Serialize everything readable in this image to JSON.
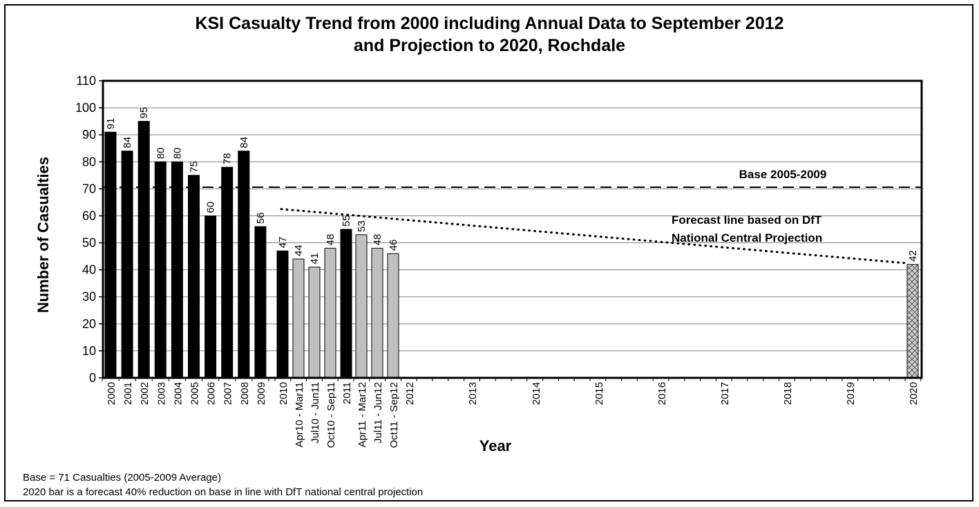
{
  "title_line1": "KSI Casualty Trend from 2000 including Annual Data to September 2012",
  "title_line2": "and Projection to 2020, Rochdale",
  "notes": {
    "line1": "Base = 71 Casualties (2005-2009 Average)",
    "line2": "2020 bar is a forecast 40% reduction on base in line with DfT national central projection"
  },
  "chart_data": {
    "type": "bar",
    "title": "KSI Casualty Trend from 2000 including Annual Data to September 2012 and Projection to 2020, Rochdale",
    "xlabel": "Year",
    "ylabel": "Number of Casualties",
    "ylim": [
      0,
      110
    ],
    "ytick_step": 10,
    "grid": true,
    "categories": [
      "2000",
      "2001",
      "2002",
      "2003",
      "2004",
      "2005",
      "2006",
      "2007",
      "2008",
      "2009",
      "2010",
      "Apr10 - Mar11",
      "Jul10 - Jun11",
      "Oct10 - Sep11",
      "2011",
      "Apr11 - Mar12",
      "Jul11 - Jun12",
      "Oct11 - Sep12",
      "2012",
      "2013",
      "2014",
      "2015",
      "2016",
      "2017",
      "2018",
      "2019",
      "2020"
    ],
    "bars": [
      {
        "category": "2000",
        "value": 91,
        "label": "91",
        "style": "annual"
      },
      {
        "category": "2001",
        "value": 84,
        "label": "84",
        "style": "annual"
      },
      {
        "category": "2002",
        "value": 95,
        "label": "95",
        "style": "annual"
      },
      {
        "category": "2003",
        "value": 80,
        "label": "80",
        "style": "annual"
      },
      {
        "category": "2004",
        "value": 80,
        "label": "80",
        "style": "annual"
      },
      {
        "category": "2005",
        "value": 75,
        "label": "75",
        "style": "annual"
      },
      {
        "category": "2006",
        "value": 60,
        "label": "60",
        "style": "annual"
      },
      {
        "category": "2007",
        "value": 78,
        "label": "78",
        "style": "annual"
      },
      {
        "category": "2008",
        "value": 84,
        "label": "84",
        "style": "annual"
      },
      {
        "category": "2009",
        "value": 56,
        "label": "56",
        "style": "annual"
      },
      {
        "category": "2010",
        "value": 47,
        "label": "47",
        "style": "annual"
      },
      {
        "category": "Apr10 - Mar11",
        "value": 44,
        "label": "44",
        "style": "rolling"
      },
      {
        "category": "Jul10 - Jun11",
        "value": 41,
        "label": "41",
        "style": "rolling"
      },
      {
        "category": "Oct10 - Sep11",
        "value": 48,
        "label": "48",
        "style": "rolling"
      },
      {
        "category": "2011",
        "value": 55,
        "label": "55",
        "style": "annual"
      },
      {
        "category": "Apr11 - Mar12",
        "value": 53,
        "label": "53",
        "style": "rolling"
      },
      {
        "category": "Jul11 - Jun12",
        "value": 48,
        "label": "48",
        "style": "rolling"
      },
      {
        "category": "Oct11 - Sep12",
        "value": 46,
        "label": "46",
        "style": "rolling"
      },
      {
        "category": "2020",
        "value": 42,
        "label": "42",
        "style": "forecast"
      }
    ],
    "base_line": {
      "value": 70.6,
      "label": "Base 2005-2009"
    },
    "forecast_line": {
      "from": {
        "category": "2010",
        "value": 62.5
      },
      "to": {
        "category": "2020",
        "value": 42.4
      },
      "label_line1": "Forecast line based on DfT",
      "label_line2": "National Central Projection"
    },
    "colors": {
      "annual": "#000000",
      "rolling": "#c0c0c0",
      "forecast": "#d0d0d0",
      "grid": "#808080"
    }
  }
}
